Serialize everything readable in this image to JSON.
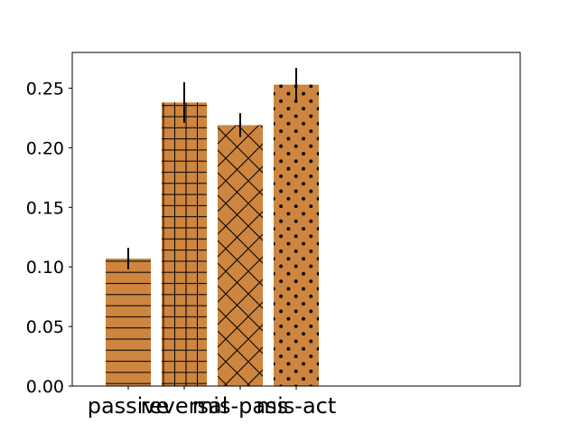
{
  "chart_data": {
    "type": "bar",
    "title": "",
    "xlabel": "",
    "ylabel": "",
    "categories": [
      "passive",
      "reversal",
      "mis-pass",
      "mis-act"
    ],
    "values": [
      0.107,
      0.238,
      0.219,
      0.253
    ],
    "errors": [
      0.009,
      0.017,
      0.01,
      0.014
    ],
    "hatches": [
      "horizontal",
      "grid",
      "crosshatch",
      "dots"
    ],
    "ylim": [
      0,
      0.28
    ],
    "yticks": [
      "0.00",
      "0.05",
      "0.10",
      "0.15",
      "0.20",
      "0.25"
    ],
    "bar_color": "#cd853f",
    "grid": false,
    "legend": "none"
  }
}
